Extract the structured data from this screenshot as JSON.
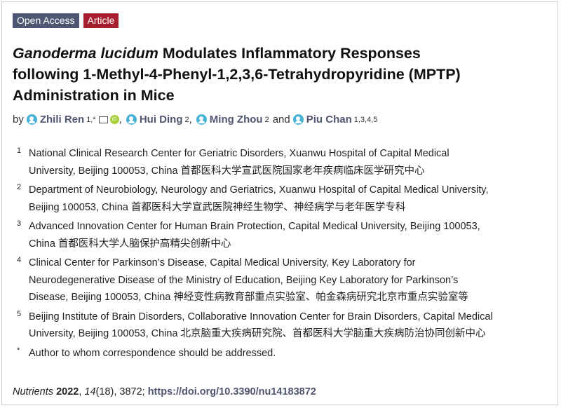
{
  "badges": {
    "open_access": "Open Access",
    "article": "Article"
  },
  "title": {
    "italic": "Ganoderma lucidum",
    "rest_line1": " Modulates Inflammatory Responses",
    "line2": "following 1-Methyl-4-Phenyl-1,2,3,6-Tetrahydropyridine (MPTP)",
    "line3": "Administration in Mice"
  },
  "authors": {
    "by": "by",
    "list": [
      {
        "name": "Zhili Ren",
        "sup": "1,*"
      },
      {
        "name": "Hui Ding",
        "sup": "2"
      },
      {
        "name": "Ming Zhou",
        "sup": "2"
      },
      {
        "name": "Piu Chan",
        "sup": "1,3,4,5"
      }
    ],
    "orcid": "iD",
    "and": "and",
    "comma": ","
  },
  "affiliations": [
    {
      "num": "1",
      "lines": [
        "National Clinical Research Center for Geriatric Disorders, Xuanwu Hospital of Capital Medical",
        "University, Beijing 100053, China 首都医科大学宣武医院国家老年疾病临床医学研究中心"
      ]
    },
    {
      "num": "2",
      "lines": [
        "Department of Neurobiology, Neurology and Geriatrics, Xuanwu Hospital of Capital Medical University,",
        "Beijing 100053, China  首都医科大学宣武医院神经生物学、神经病学与老年医学专科"
      ]
    },
    {
      "num": "3",
      "lines": [
        "Advanced Innovation Center for Human Brain Protection, Capital Medical University, Beijing 100053,",
        "China  首都医科大学人脑保护高精尖创新中心"
      ]
    },
    {
      "num": "4",
      "lines": [
        "Clinical Center for Parkinson’s Disease, Capital Medical University, Key Laboratory for",
        "Neurodegenerative Disease of the Ministry of Education, Beijing Key Laboratory for Parkinson’s",
        "Disease, Beijing 100053, China  神经变性病教育部重点实验室、帕金森病研究北京市重点实验室等"
      ]
    },
    {
      "num": "5",
      "lines": [
        "Beijing Institute of Brain Disorders, Collaborative Innovation Center for Brain Disorders, Capital Medical",
        "University, Beijing 100053, China 北京脑重大疾病研究院、首都医科大学脑重大疾病防治协同创新中心"
      ]
    },
    {
      "num": "*",
      "lines": [
        "Author to whom correspondence should be addressed."
      ]
    }
  ],
  "citation": {
    "journal": "Nutrients",
    "year": "2022",
    "volume": "14",
    "issue_pages": "(18), 3872; ",
    "doi": "https://doi.org/10.3390/nu14183872"
  },
  "colors": {
    "open_access": "#4f5671",
    "article": "#a51f2e",
    "author_link": "#4f5671",
    "person_icon": "#45b2d6",
    "orcid": "#a6ce39"
  }
}
